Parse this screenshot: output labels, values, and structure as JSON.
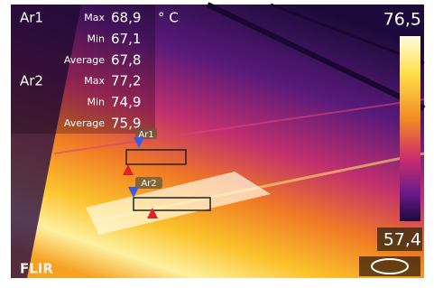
{
  "measurements": [
    {
      "label": "Ar1",
      "rows": [
        {
          "stat": "Max",
          "value": "68,9"
        },
        {
          "stat": "Min",
          "value": "67,1"
        },
        {
          "stat": "Average",
          "value": "67,8"
        }
      ]
    },
    {
      "label": "Ar2",
      "rows": [
        {
          "stat": "Max",
          "value": "77,2"
        },
        {
          "stat": "Min",
          "value": "74,9"
        },
        {
          "stat": "Average",
          "value": "75,9"
        }
      ]
    }
  ],
  "unit": "° C",
  "scale": {
    "max": "76,5",
    "min": "57,4"
  },
  "boxes": [
    {
      "label": "Ar1"
    },
    {
      "label": "Ar2"
    }
  ],
  "logo": "FLIR"
}
